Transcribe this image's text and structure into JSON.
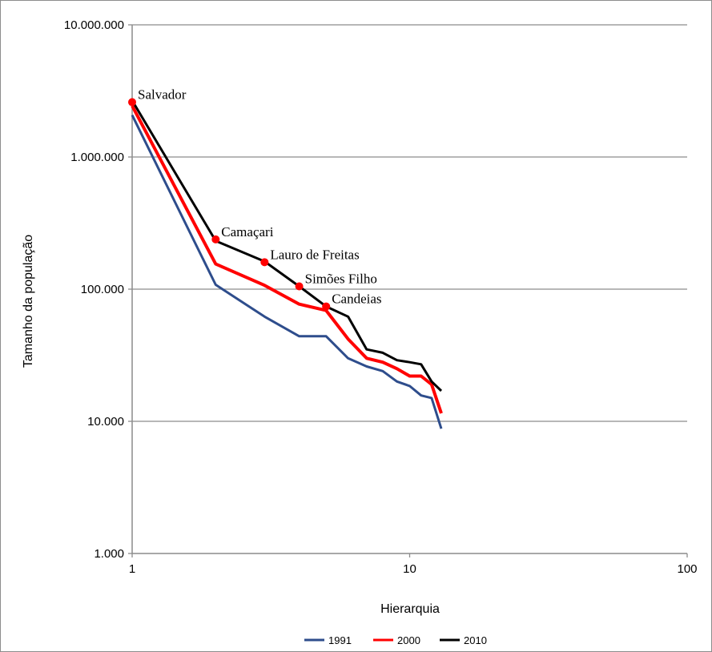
{
  "chart_data": {
    "type": "line",
    "title": "",
    "xlabel": "Hierarquia",
    "ylabel": "Tamanho da população",
    "x_scale": "log",
    "y_scale": "log",
    "xlim": [
      1,
      100
    ],
    "ylim": [
      1000,
      10000000
    ],
    "x_ticks": [
      {
        "value": 1,
        "label": "1"
      },
      {
        "value": 10,
        "label": "10"
      },
      {
        "value": 100,
        "label": "100"
      }
    ],
    "y_ticks": [
      {
        "value": 1000,
        "label": "1.000"
      },
      {
        "value": 10000,
        "label": "10.000"
      },
      {
        "value": 100000,
        "label": "100.000"
      },
      {
        "value": 1000000,
        "label": "1.000.000"
      },
      {
        "value": 10000000,
        "label": "10.000.000"
      }
    ],
    "grid": "horizontal",
    "legend_position": "bottom",
    "series": [
      {
        "name": "1991",
        "color": "#2e4d8c",
        "x": [
          1,
          2,
          3,
          4,
          5,
          6,
          7,
          8,
          9,
          10,
          11,
          12,
          13
        ],
        "values": [
          2075000,
          108000,
          62000,
          44000,
          44000,
          30000,
          26000,
          24000,
          20000,
          18500,
          15700,
          15000,
          8800
        ]
      },
      {
        "name": "2000",
        "color": "#ff0000",
        "x": [
          1,
          2,
          3,
          4,
          5,
          6,
          7,
          8,
          9,
          10,
          11,
          12,
          13
        ],
        "values": [
          2440000,
          155000,
          107000,
          77000,
          69000,
          42000,
          30000,
          28000,
          25000,
          22000,
          22000,
          19000,
          11500
        ]
      },
      {
        "name": "2010",
        "color": "#000000",
        "x": [
          1,
          2,
          3,
          4,
          5,
          6,
          7,
          8,
          9,
          10,
          11,
          12,
          13
        ],
        "values": [
          2675000,
          232000,
          162000,
          105000,
          74000,
          62000,
          35000,
          33000,
          29000,
          28000,
          27000,
          20000,
          17000
        ]
      }
    ],
    "annotations": [
      {
        "label": "Salvador",
        "x": 1,
        "y": 2600000
      },
      {
        "label": "Camaçari",
        "x": 2,
        "y": 238000
      },
      {
        "label": "Lauro de Freitas",
        "x": 3,
        "y": 160000
      },
      {
        "label": "Simões Filho",
        "x": 4,
        "y": 105000
      },
      {
        "label": "Candeias",
        "x": 5,
        "y": 74000
      }
    ],
    "annotation_color": "#ff0000"
  }
}
